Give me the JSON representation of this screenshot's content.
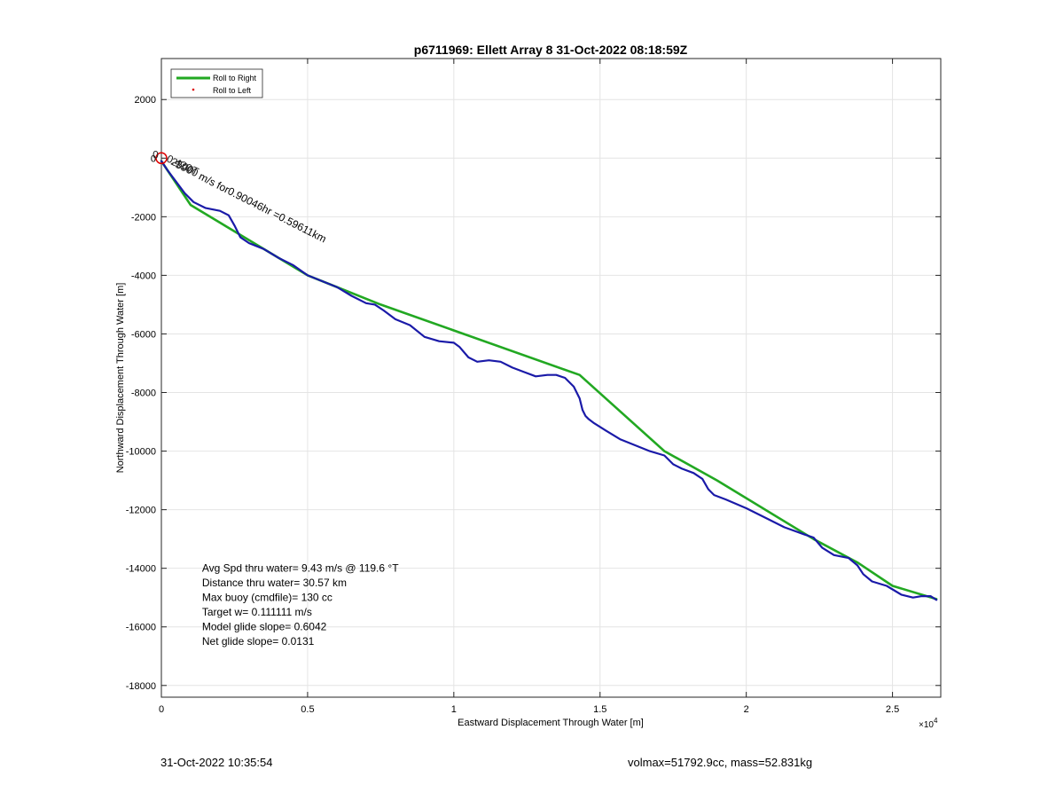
{
  "chart_data": {
    "type": "line",
    "title": "p6711969: Ellett Array 8 31-Oct-2022 08:18:59Z",
    "xlabel": "Eastward Displacement Through Water [m]",
    "ylabel": "Northward Displacement Through Water [m]",
    "x_exponent_label": "×10",
    "x_exponent_power": "4",
    "xlim": [
      0,
      26650
    ],
    "ylim": [
      -18400,
      3400
    ],
    "x_ticks": [
      0,
      5000,
      10000,
      15000,
      20000,
      25000
    ],
    "x_tick_labels": [
      "0",
      "0.5",
      "1",
      "1.5",
      "2",
      "2.5"
    ],
    "y_ticks": [
      2000,
      0,
      -2000,
      -4000,
      -6000,
      -8000,
      -10000,
      -12000,
      -14000,
      -16000,
      -18000
    ],
    "y_tick_labels": [
      "2000",
      "0",
      "-2000",
      "-4000",
      "-6000",
      "-8000",
      "-10000",
      "-12000",
      "-14000",
      "-16000",
      "-18000"
    ],
    "grid": true,
    "legend_position": "top-left",
    "legend": [
      {
        "label": "Roll to Right",
        "color": "#22a822",
        "style": "line"
      },
      {
        "label": "Roll to Left",
        "color": "#dd0000",
        "style": "dot"
      }
    ],
    "series": [
      {
        "name": "Roll to Right",
        "color": "#22a822",
        "x": [
          0,
          1000,
          2500,
          5000,
          7500,
          14300,
          17200,
          19000,
          22300,
          23800,
          25000,
          26500
        ],
        "y": [
          -100,
          -1600,
          -2500,
          -4000,
          -5000,
          -7400,
          -10000,
          -11000,
          -13000,
          -13800,
          -14600,
          -15050
        ]
      },
      {
        "name": "Track",
        "color": "#1a1aa8",
        "x": [
          0,
          200,
          500,
          800,
          1100,
          1500,
          2000,
          2300,
          2500,
          2700,
          3000,
          3500,
          4000,
          4500,
          5000,
          5500,
          6000,
          6500,
          7000,
          7300,
          7600,
          8000,
          8500,
          9000,
          9500,
          10000,
          10200,
          10500,
          10800,
          11200,
          11600,
          12000,
          12400,
          12800,
          13200,
          13500,
          13800,
          14100,
          14300,
          14400,
          14500,
          14600,
          14800,
          15200,
          15700,
          16200,
          16700,
          17200,
          17500,
          17800,
          18200,
          18500,
          18700,
          18900,
          19300,
          20000,
          20700,
          21300,
          22000,
          22300,
          22600,
          23000,
          23500,
          23800,
          24000,
          24300,
          24800,
          25300,
          25700,
          26000,
          26300,
          26500
        ],
        "y": [
          -100,
          -400,
          -800,
          -1200,
          -1500,
          -1700,
          -1800,
          -1950,
          -2300,
          -2700,
          -2900,
          -3100,
          -3400,
          -3650,
          -4000,
          -4200,
          -4400,
          -4700,
          -4950,
          -5000,
          -5200,
          -5500,
          -5700,
          -6100,
          -6250,
          -6300,
          -6450,
          -6800,
          -6950,
          -6900,
          -6950,
          -7150,
          -7300,
          -7450,
          -7400,
          -7400,
          -7500,
          -7800,
          -8200,
          -8600,
          -8800,
          -8900,
          -9050,
          -9300,
          -9600,
          -9800,
          -10000,
          -10150,
          -10450,
          -10600,
          -10750,
          -10950,
          -11300,
          -11500,
          -11650,
          -11950,
          -12300,
          -12600,
          -12850,
          -12950,
          -13300,
          -13550,
          -13650,
          -13900,
          -14200,
          -14450,
          -14600,
          -14900,
          -15000,
          -14950,
          -14950,
          -15080
        ]
      }
    ],
    "annotations": [
      {
        "text": "Avg Spd thru water=  9.43 m/s @ 119.6 °T",
        "x": 1300,
        "y": -14000
      },
      {
        "text": "Distance thru water= 30.57 km",
        "x": 1300,
        "y": -14500
      },
      {
        "text": "Max buoy (cmdfile)= 130 cc",
        "x": 1300,
        "y": -15000
      },
      {
        "text": "Target w= 0.111111 m/s",
        "x": 1300,
        "y": -15500
      },
      {
        "text": "Model glide slope= 0.6042",
        "x": 1300,
        "y": -16000
      },
      {
        "text": "Net glide slope= 0.0131",
        "x": 1300,
        "y": -16500
      }
    ],
    "rotated_label": {
      "text": "m/s for0.90046hr =0.59611km",
      "x": 1250,
      "y": -700,
      "angle": 27
    },
    "overlap_labels": [
      {
        "text": "0",
        "x": -300,
        "y": 0
      },
      {
        "text": "0.420",
        "x": 150,
        "y": -100,
        "angle": 25
      },
      {
        "text": "2500",
        "x": 300,
        "y": -200,
        "angle": 25
      },
      {
        "text": "3900",
        "x": 450,
        "y": -300,
        "angle": 25
      },
      {
        "text": "T",
        "x": 1000,
        "y": -500,
        "angle": 25
      }
    ],
    "start_marker": {
      "x": 0,
      "y": 0,
      "color": "#dd0000"
    }
  },
  "footer": {
    "timestamp": "31-Oct-2022 10:35:54",
    "stats": "volmax=51792.9cc, mass=52.831kg"
  }
}
